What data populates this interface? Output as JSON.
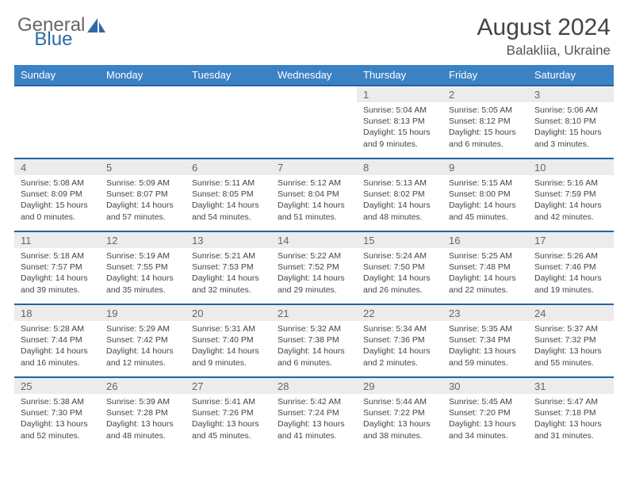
{
  "brand": {
    "part1": "General",
    "part2": "Blue"
  },
  "title": "August 2024",
  "location": "Balakliia, Ukraine",
  "colors": {
    "header_blue": "#3b82c4",
    "divider_blue": "#2563a0",
    "alt_row_bg": "#ececec",
    "logo_accent": "#2f6aa8"
  },
  "weekdays": [
    "Sunday",
    "Monday",
    "Tuesday",
    "Wednesday",
    "Thursday",
    "Friday",
    "Saturday"
  ],
  "weeks": [
    [
      null,
      null,
      null,
      null,
      {
        "n": "1",
        "sr": "5:04 AM",
        "ss": "8:13 PM",
        "dh": 15,
        "dm": 9
      },
      {
        "n": "2",
        "sr": "5:05 AM",
        "ss": "8:12 PM",
        "dh": 15,
        "dm": 6
      },
      {
        "n": "3",
        "sr": "5:06 AM",
        "ss": "8:10 PM",
        "dh": 15,
        "dm": 3
      }
    ],
    [
      {
        "n": "4",
        "sr": "5:08 AM",
        "ss": "8:09 PM",
        "dh": 15,
        "dm": 0
      },
      {
        "n": "5",
        "sr": "5:09 AM",
        "ss": "8:07 PM",
        "dh": 14,
        "dm": 57
      },
      {
        "n": "6",
        "sr": "5:11 AM",
        "ss": "8:05 PM",
        "dh": 14,
        "dm": 54
      },
      {
        "n": "7",
        "sr": "5:12 AM",
        "ss": "8:04 PM",
        "dh": 14,
        "dm": 51
      },
      {
        "n": "8",
        "sr": "5:13 AM",
        "ss": "8:02 PM",
        "dh": 14,
        "dm": 48
      },
      {
        "n": "9",
        "sr": "5:15 AM",
        "ss": "8:00 PM",
        "dh": 14,
        "dm": 45
      },
      {
        "n": "10",
        "sr": "5:16 AM",
        "ss": "7:59 PM",
        "dh": 14,
        "dm": 42
      }
    ],
    [
      {
        "n": "11",
        "sr": "5:18 AM",
        "ss": "7:57 PM",
        "dh": 14,
        "dm": 39
      },
      {
        "n": "12",
        "sr": "5:19 AM",
        "ss": "7:55 PM",
        "dh": 14,
        "dm": 35
      },
      {
        "n": "13",
        "sr": "5:21 AM",
        "ss": "7:53 PM",
        "dh": 14,
        "dm": 32
      },
      {
        "n": "14",
        "sr": "5:22 AM",
        "ss": "7:52 PM",
        "dh": 14,
        "dm": 29
      },
      {
        "n": "15",
        "sr": "5:24 AM",
        "ss": "7:50 PM",
        "dh": 14,
        "dm": 26
      },
      {
        "n": "16",
        "sr": "5:25 AM",
        "ss": "7:48 PM",
        "dh": 14,
        "dm": 22
      },
      {
        "n": "17",
        "sr": "5:26 AM",
        "ss": "7:46 PM",
        "dh": 14,
        "dm": 19
      }
    ],
    [
      {
        "n": "18",
        "sr": "5:28 AM",
        "ss": "7:44 PM",
        "dh": 14,
        "dm": 16
      },
      {
        "n": "19",
        "sr": "5:29 AM",
        "ss": "7:42 PM",
        "dh": 14,
        "dm": 12
      },
      {
        "n": "20",
        "sr": "5:31 AM",
        "ss": "7:40 PM",
        "dh": 14,
        "dm": 9
      },
      {
        "n": "21",
        "sr": "5:32 AM",
        "ss": "7:38 PM",
        "dh": 14,
        "dm": 6
      },
      {
        "n": "22",
        "sr": "5:34 AM",
        "ss": "7:36 PM",
        "dh": 14,
        "dm": 2
      },
      {
        "n": "23",
        "sr": "5:35 AM",
        "ss": "7:34 PM",
        "dh": 13,
        "dm": 59
      },
      {
        "n": "24",
        "sr": "5:37 AM",
        "ss": "7:32 PM",
        "dh": 13,
        "dm": 55
      }
    ],
    [
      {
        "n": "25",
        "sr": "5:38 AM",
        "ss": "7:30 PM",
        "dh": 13,
        "dm": 52
      },
      {
        "n": "26",
        "sr": "5:39 AM",
        "ss": "7:28 PM",
        "dh": 13,
        "dm": 48
      },
      {
        "n": "27",
        "sr": "5:41 AM",
        "ss": "7:26 PM",
        "dh": 13,
        "dm": 45
      },
      {
        "n": "28",
        "sr": "5:42 AM",
        "ss": "7:24 PM",
        "dh": 13,
        "dm": 41
      },
      {
        "n": "29",
        "sr": "5:44 AM",
        "ss": "7:22 PM",
        "dh": 13,
        "dm": 38
      },
      {
        "n": "30",
        "sr": "5:45 AM",
        "ss": "7:20 PM",
        "dh": 13,
        "dm": 34
      },
      {
        "n": "31",
        "sr": "5:47 AM",
        "ss": "7:18 PM",
        "dh": 13,
        "dm": 31
      }
    ]
  ],
  "labels": {
    "sunrise_prefix": "Sunrise: ",
    "sunset_prefix": "Sunset: ",
    "daylight_prefix": "Daylight: ",
    "hours_word": " hours",
    "and_word": "and ",
    "minutes_word": " minutes."
  }
}
